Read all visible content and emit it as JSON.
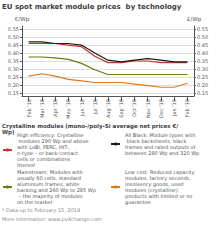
{
  "chart_data": {
    "type": "line",
    "title": "EU spot market module prices  by technology",
    "subtitle": "Crystalline modules (mono-/poly-Si average net prices €/Wp)",
    "ylabel": "€/Wp",
    "y2label": "£/Wp",
    "categories": [
      "Feb '18",
      "Mar '18",
      "Apr '18",
      "May '18",
      "Jun '18",
      "Jul '18",
      "Aug '18",
      "Sep '18",
      "Oct '18",
      "Nov '18",
      "Dec '18",
      "Jan '19",
      "Feb '19"
    ],
    "series": [
      {
        "name": "High efficiency: Crystalline modules 290 Wp and above with LoBi, PERC, HIT-, n-type – or back-contact cells or combinations thereof",
        "color": "#c0392b",
        "values": [
          0.46,
          0.46,
          0.46,
          0.45,
          0.44,
          0.38,
          0.34,
          0.34,
          0.35,
          0.35,
          0.34,
          0.34,
          0.34
        ]
      },
      {
        "name": "All Black: Module types with black backsheets, black frames and rated outputs of between 280 Wp and 320 Wp",
        "color": "#1a1a1a",
        "values": [
          0.47,
          0.47,
          0.46,
          0.46,
          0.45,
          0.4,
          0.355,
          0.345,
          0.355,
          0.365,
          0.355,
          0.345,
          0.345
        ]
      },
      {
        "name": "Mainstream: Modules with usually 60 cells, standard aluminium frames, white backing and 260 Wp to 285 Wp – the majority of modules on the market",
        "color": "#6b7a0f",
        "values": [
          0.375,
          0.375,
          0.37,
          0.36,
          0.335,
          0.295,
          0.265,
          0.265,
          0.265,
          0.265,
          0.265,
          0.265,
          0.265
        ]
      },
      {
        "name": "Low cost: Reduced capacity modules, factory seconds, insolvency goods, used modules (crystalline), products with limited or no guarantee",
        "color": "#e07820",
        "values": [
          0.255,
          0.27,
          0.255,
          0.235,
          0.225,
          0.215,
          0.215,
          0.215,
          0.205,
          0.195,
          0.185,
          0.185,
          0.21
        ]
      }
    ],
    "ylim": [
      0.13,
      0.57
    ],
    "yticks": [
      0.55,
      {
        "value": 0.5,
        "label": "0.50"
      },
      0.45,
      {
        "value": 0.4,
        "label": "0.40"
      },
      0.35,
      {
        "value": 0.3,
        "label": "0.30"
      },
      0.25,
      {
        "value": 0.2,
        "label": "0.20"
      },
      0.15
    ],
    "y2lim": [
      0.13,
      0.57
    ],
    "y2ticks": [
      0.55,
      {
        "value": 0.5,
        "label": "0.50"
      },
      0.45,
      {
        "value": 0.4,
        "label": "0.40"
      },
      0.35,
      {
        "value": 0.3,
        "label": "0.30"
      },
      0.25,
      {
        "value": 0.2,
        "label": "0.20"
      },
      0.15
    ],
    "grid": true,
    "annotations": [
      "* Data up to February 15, 2019",
      "More information: www.pvXchange.com"
    ]
  }
}
